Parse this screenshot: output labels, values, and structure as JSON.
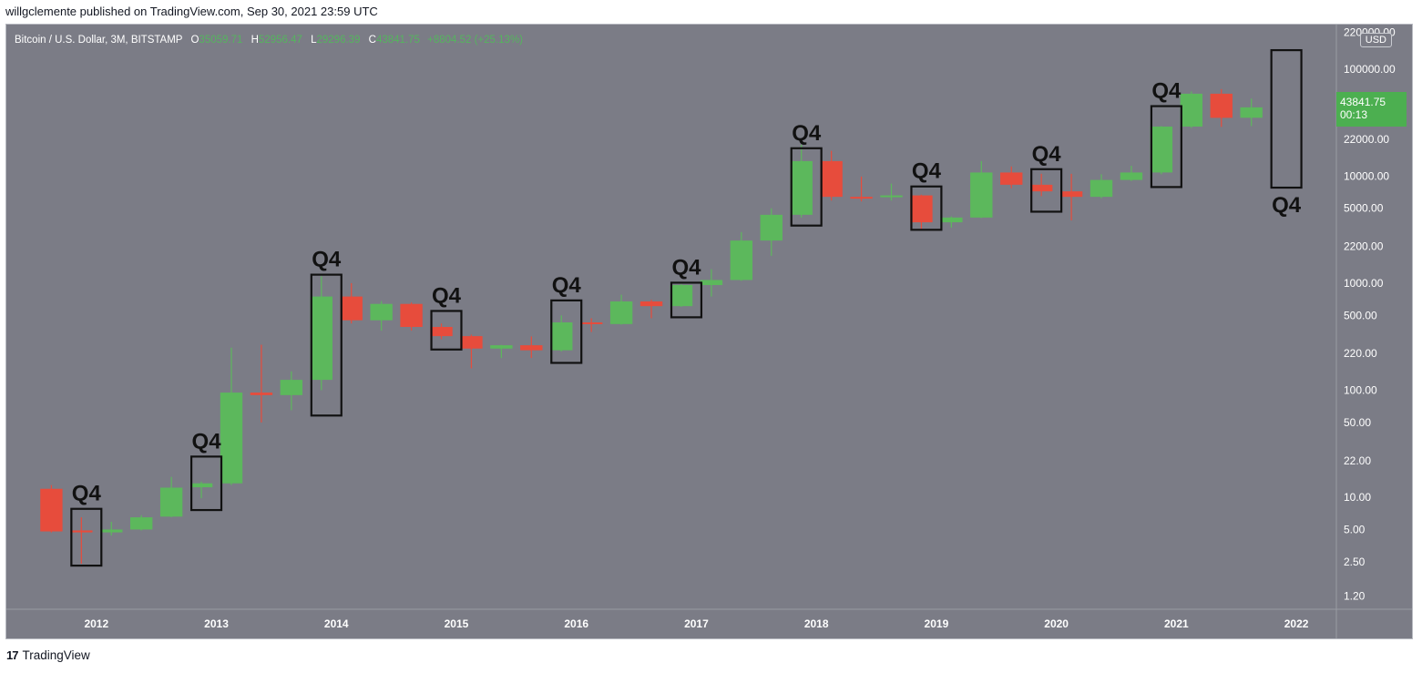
{
  "header": {
    "published_by": "willgclemente published on TradingView.com, Sep 30, 2021 23:59 UTC"
  },
  "legend": {
    "symbol": "Bitcoin / U.S. Dollar, 3M, BITSTAMP",
    "open_label": "O",
    "open": "35059.71",
    "high_label": "H",
    "high": "52956.47",
    "low_label": "L",
    "low": "29296.39",
    "close_label": "C",
    "close": "43841.75",
    "change": "+8804.52 (+25.13%)"
  },
  "currency_label": "USD",
  "price_tag": {
    "price": "43841.75",
    "countdown": "00:13"
  },
  "footer": {
    "brand": "TradingView",
    "logo": "tradingview-logo-icon"
  },
  "colors": {
    "up": "#5cb85c",
    "down": "#e74c3c",
    "background": "#7b7c86",
    "box": "#111111"
  },
  "chart_data": {
    "type": "candlestick",
    "yscale": "log",
    "ylim": [
      0.9,
      260000
    ],
    "xlim": [
      "2011-04",
      "2022-05"
    ],
    "y_ticks": [
      "220000.00",
      "100000.00",
      "50000.00",
      "22000.00",
      "10000.00",
      "5000.00",
      "2200.00",
      "1000.00",
      "500.00",
      "220.00",
      "100.00",
      "50.00",
      "22.00",
      "10.00",
      "5.00",
      "2.50",
      "1.20"
    ],
    "x_ticks": [
      "2012",
      "2013",
      "2014",
      "2015",
      "2016",
      "2017",
      "2018",
      "2019",
      "2020",
      "2021",
      "2022"
    ],
    "candles": [
      {
        "date": "2011-07",
        "o": 12,
        "h": 13,
        "l": 4.7,
        "c": 4.8
      },
      {
        "date": "2011-10",
        "o": 4.9,
        "h": 6.5,
        "l": 2.4,
        "c": 4.7
      },
      {
        "date": "2012-01",
        "o": 4.7,
        "h": 5.9,
        "l": 4.4,
        "c": 5.0
      },
      {
        "date": "2012-04",
        "o": 5.0,
        "h": 6.8,
        "l": 4.9,
        "c": 6.5
      },
      {
        "date": "2012-07",
        "o": 6.6,
        "h": 15.5,
        "l": 6.5,
        "c": 12.3
      },
      {
        "date": "2012-10",
        "o": 12.4,
        "h": 14.0,
        "l": 9.8,
        "c": 13.5
      },
      {
        "date": "2013-01",
        "o": 13.5,
        "h": 250,
        "l": 13.0,
        "c": 95
      },
      {
        "date": "2013-04",
        "o": 95,
        "h": 266,
        "l": 50,
        "c": 90
      },
      {
        "date": "2013-07",
        "o": 90,
        "h": 150,
        "l": 65,
        "c": 125
      },
      {
        "date": "2013-10",
        "o": 125,
        "h": 1160,
        "l": 100,
        "c": 750
      },
      {
        "date": "2014-01",
        "o": 750,
        "h": 1000,
        "l": 420,
        "c": 450
      },
      {
        "date": "2014-04",
        "o": 450,
        "h": 680,
        "l": 360,
        "c": 640
      },
      {
        "date": "2014-07",
        "o": 640,
        "h": 660,
        "l": 360,
        "c": 390
      },
      {
        "date": "2014-10",
        "o": 390,
        "h": 420,
        "l": 300,
        "c": 320
      },
      {
        "date": "2015-01",
        "o": 320,
        "h": 330,
        "l": 160,
        "c": 245
      },
      {
        "date": "2015-04",
        "o": 245,
        "h": 265,
        "l": 200,
        "c": 263
      },
      {
        "date": "2015-07",
        "o": 263,
        "h": 318,
        "l": 200,
        "c": 236
      },
      {
        "date": "2015-10",
        "o": 236,
        "h": 500,
        "l": 230,
        "c": 430
      },
      {
        "date": "2016-01",
        "o": 430,
        "h": 470,
        "l": 350,
        "c": 415
      },
      {
        "date": "2016-04",
        "o": 415,
        "h": 780,
        "l": 410,
        "c": 675
      },
      {
        "date": "2016-07",
        "o": 675,
        "h": 700,
        "l": 470,
        "c": 610
      },
      {
        "date": "2016-10",
        "o": 610,
        "h": 980,
        "l": 600,
        "c": 960
      },
      {
        "date": "2017-01",
        "o": 960,
        "h": 1350,
        "l": 750,
        "c": 1070
      },
      {
        "date": "2017-04",
        "o": 1070,
        "h": 3000,
        "l": 1050,
        "c": 2500
      },
      {
        "date": "2017-07",
        "o": 2500,
        "h": 5000,
        "l": 1800,
        "c": 4350
      },
      {
        "date": "2017-10",
        "o": 4350,
        "h": 19600,
        "l": 4100,
        "c": 13800
      },
      {
        "date": "2018-01",
        "o": 13800,
        "h": 17200,
        "l": 5900,
        "c": 6400
      },
      {
        "date": "2018-04",
        "o": 6400,
        "h": 9900,
        "l": 5800,
        "c": 6350
      },
      {
        "date": "2018-07",
        "o": 6350,
        "h": 8500,
        "l": 5900,
        "c": 6600
      },
      {
        "date": "2018-10",
        "o": 6600,
        "h": 6700,
        "l": 3150,
        "c": 3700
      },
      {
        "date": "2019-01",
        "o": 3700,
        "h": 4200,
        "l": 3300,
        "c": 4100
      },
      {
        "date": "2019-04",
        "o": 4100,
        "h": 13800,
        "l": 4050,
        "c": 10800
      },
      {
        "date": "2019-07",
        "o": 10800,
        "h": 12300,
        "l": 7700,
        "c": 8300
      },
      {
        "date": "2019-10",
        "o": 8300,
        "h": 10500,
        "l": 6500,
        "c": 7200
      },
      {
        "date": "2020-01",
        "o": 7200,
        "h": 10500,
        "l": 3850,
        "c": 6400
      },
      {
        "date": "2020-04",
        "o": 6400,
        "h": 10400,
        "l": 6200,
        "c": 9200
      },
      {
        "date": "2020-07",
        "o": 9200,
        "h": 12500,
        "l": 9000,
        "c": 10800
      },
      {
        "date": "2020-10",
        "o": 10800,
        "h": 29300,
        "l": 10400,
        "c": 29000
      },
      {
        "date": "2021-01",
        "o": 29000,
        "h": 61800,
        "l": 28100,
        "c": 58800
      },
      {
        "date": "2021-04",
        "o": 58800,
        "h": 64900,
        "l": 28800,
        "c": 35000
      },
      {
        "date": "2021-07",
        "o": 35059.71,
        "h": 52956.47,
        "l": 29296.39,
        "c": 43841.75
      }
    ],
    "boxes": [
      {
        "label": "Q4",
        "from": "2011-09",
        "to": "2011-12",
        "top": 7.8,
        "bottom": 2.3,
        "label_position": "above"
      },
      {
        "label": "Q4",
        "from": "2012-09",
        "to": "2012-12",
        "top": 24,
        "bottom": 7.6,
        "label_position": "above"
      },
      {
        "label": "Q4",
        "from": "2013-09",
        "to": "2013-12",
        "top": 1200,
        "bottom": 58,
        "label_position": "above"
      },
      {
        "label": "Q4",
        "from": "2014-09",
        "to": "2014-12",
        "top": 550,
        "bottom": 240,
        "label_position": "above"
      },
      {
        "label": "Q4",
        "from": "2015-09",
        "to": "2015-12",
        "top": 690,
        "bottom": 180,
        "label_position": "above"
      },
      {
        "label": "Q4",
        "from": "2016-09",
        "to": "2016-12",
        "top": 1010,
        "bottom": 480,
        "label_position": "above"
      },
      {
        "label": "Q4",
        "from": "2017-09",
        "to": "2017-12",
        "top": 18200,
        "bottom": 3450,
        "label_position": "above"
      },
      {
        "label": "Q4",
        "from": "2018-09",
        "to": "2018-12",
        "top": 8000,
        "bottom": 3150,
        "label_position": "above"
      },
      {
        "label": "Q4",
        "from": "2019-09",
        "to": "2019-12",
        "top": 11600,
        "bottom": 4650,
        "label_position": "above"
      },
      {
        "label": "Q4",
        "from": "2020-09",
        "to": "2020-12",
        "top": 45000,
        "bottom": 7900,
        "label_position": "above"
      },
      {
        "label": "Q4",
        "from": "2021-09",
        "to": "2021-12",
        "top": 150000,
        "bottom": 7800,
        "label_position": "below"
      }
    ]
  }
}
